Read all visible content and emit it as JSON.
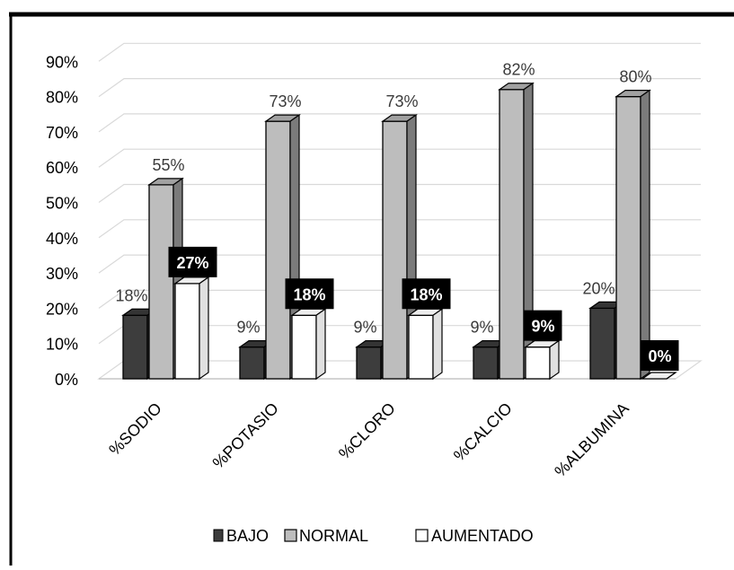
{
  "chart_data": {
    "type": "bar",
    "title": "",
    "xlabel": "",
    "ylabel": "",
    "ylim": [
      0,
      90
    ],
    "ytick_step": 10,
    "ytick_labels": [
      "0%",
      "10%",
      "20%",
      "30%",
      "40%",
      "50%",
      "60%",
      "70%",
      "80%",
      "90%"
    ],
    "grid": true,
    "three_d": true,
    "legend_position": "bottom",
    "categories": [
      "%SODIO",
      "%POTASIO",
      "%CLORO",
      "%CALCIO",
      "%ALBUMINA"
    ],
    "series": [
      {
        "name": "BAJO",
        "values": [
          18,
          9,
          9,
          9,
          20
        ],
        "labels": [
          "18%",
          "9%",
          "9%",
          "9%",
          "20%"
        ],
        "color": "#3d3d3d",
        "label_style": "plain"
      },
      {
        "name": "NORMAL",
        "values": [
          55,
          73,
          73,
          82,
          80
        ],
        "labels": [
          "55%",
          "73%",
          "73%",
          "82%",
          "80%"
        ],
        "color": "#bdbdbd",
        "label_style": "plain"
      },
      {
        "name": "AUMENTADO",
        "values": [
          27,
          18,
          18,
          9,
          0
        ],
        "labels": [
          "27%",
          "18%",
          "18%",
          "9%",
          "0%"
        ],
        "color": "#ffffff",
        "label_style": "boxed"
      }
    ]
  }
}
